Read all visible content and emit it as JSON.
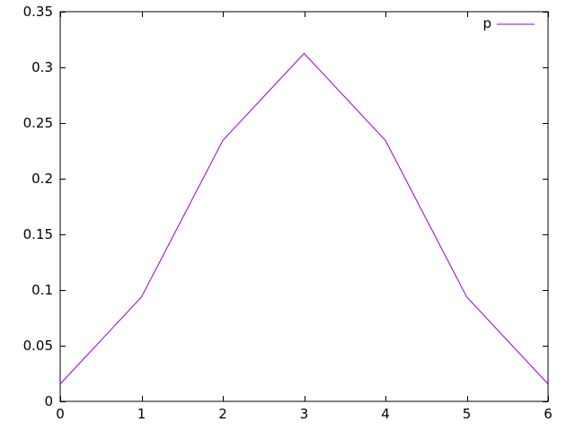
{
  "window": {
    "background": "#ffffff"
  },
  "chart_data": {
    "type": "line",
    "title": "",
    "xlabel": "",
    "ylabel": "",
    "x": [
      0,
      1,
      2,
      3,
      4,
      5,
      6
    ],
    "series": [
      {
        "name": "p",
        "color": "#9400d3",
        "values": [
          0.015625,
          0.09375,
          0.234375,
          0.3125,
          0.234375,
          0.09375,
          0.015625
        ]
      }
    ],
    "xlim": [
      0,
      6
    ],
    "ylim": [
      0,
      0.35
    ],
    "x_ticks": [
      0,
      1,
      2,
      3,
      4,
      5,
      6
    ],
    "x_tick_labels": [
      "0",
      "1",
      "2",
      "3",
      "4",
      "5",
      "6"
    ],
    "y_ticks": [
      0,
      0.05,
      0.1,
      0.15,
      0.2,
      0.25,
      0.3,
      0.35
    ],
    "y_tick_labels": [
      "0",
      "0.05",
      "0.1",
      "0.15",
      "0.2",
      "0.25",
      "0.3",
      "0.35"
    ],
    "grid": false,
    "ticks_mirrored": true,
    "legend_position": "top-right",
    "legend_entries": [
      "p"
    ],
    "border_color": "#000000",
    "text_color": "#000000",
    "background": "#ffffff"
  }
}
